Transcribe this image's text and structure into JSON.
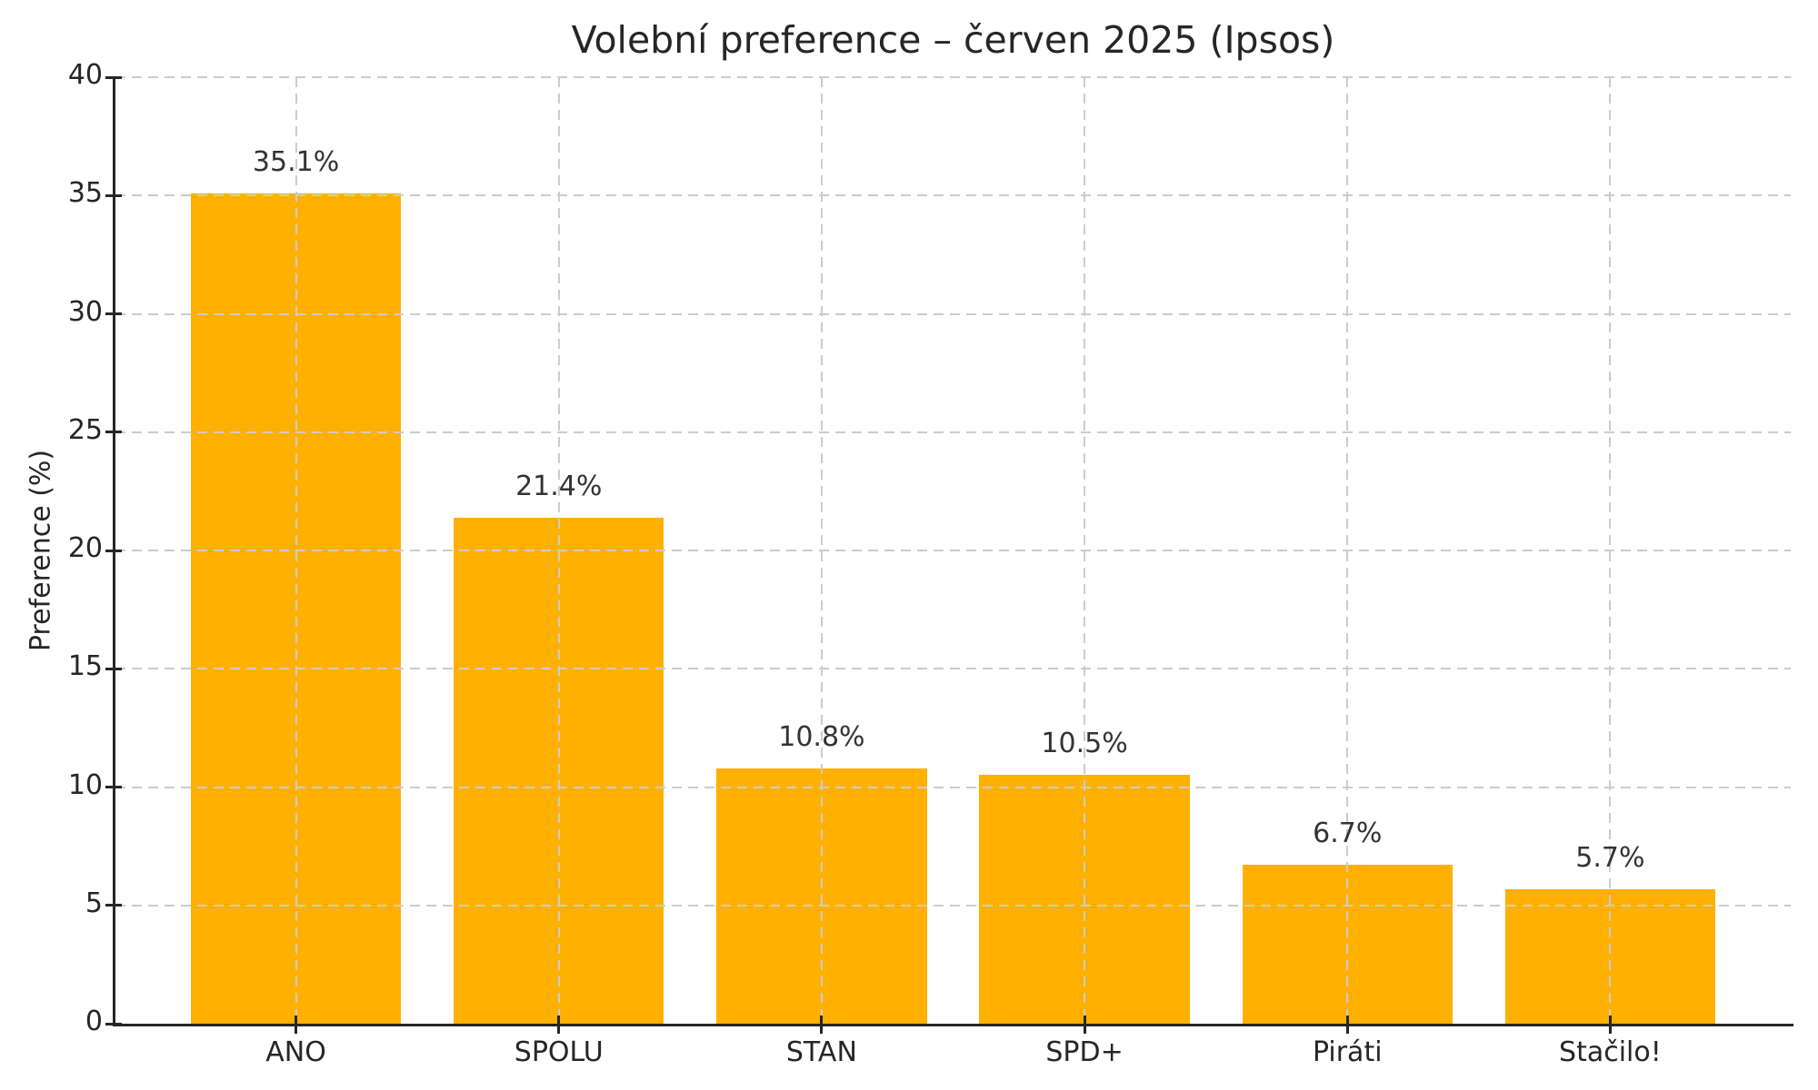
{
  "figure": {
    "background": "#FFFFFF"
  },
  "chart_data": {
    "type": "bar",
    "title": "Volební preference – červen 2025 (Ipsos)",
    "categories": [
      "ANO",
      "SPOLU",
      "STAN",
      "SPD+",
      "Piráti",
      "Stačilo!"
    ],
    "values": [
      35.1,
      21.4,
      10.8,
      10.5,
      6.7,
      5.7
    ],
    "value_labels": [
      "35.1%",
      "21.4%",
      "10.8%",
      "10.5%",
      "6.7%",
      "5.7%"
    ],
    "xlabel": "",
    "ylabel": "Preference (%)",
    "ylim": [
      0,
      40
    ],
    "yticks": [
      0,
      5,
      10,
      15,
      20,
      25,
      30,
      35,
      40
    ],
    "bar_color": "#FFB000",
    "text_color": "#262626",
    "value_label_color": "#333333",
    "grid_color": "#CCCCCC",
    "grid_style": "dashed",
    "legend": "none",
    "spines": [
      "left",
      "bottom"
    ]
  }
}
